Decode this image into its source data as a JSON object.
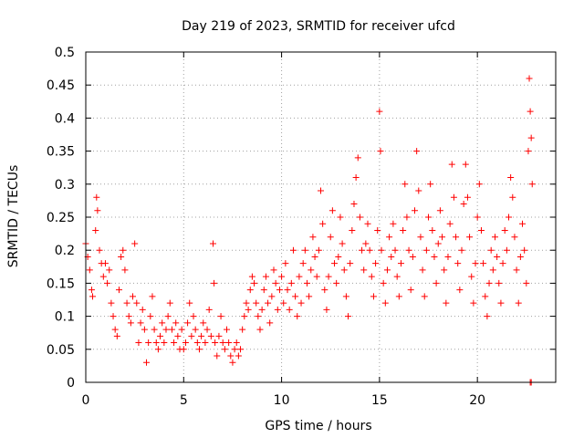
{
  "chart_data": {
    "type": "scatter",
    "title": "Day 219 of 2023, SRMTID for receiver ufcd",
    "xlabel": "GPS time / hours",
    "ylabel": "SRMTID / TECUs",
    "xlim": [
      0,
      24
    ],
    "ylim": [
      0,
      0.5
    ],
    "x_ticks": [
      "0",
      "5",
      "10",
      "15",
      "20"
    ],
    "y_ticks": [
      "0",
      "0.05",
      "0.1",
      "0.15",
      "0.2",
      "0.25",
      "0.3",
      "0.35",
      "0.4",
      "0.45",
      "0.5"
    ],
    "grid": true,
    "marker": "+",
    "color": "#ff0000",
    "series": [
      {
        "values_note": "dense scatter; representative points read from the plot",
        "points": [
          [
            0.0,
            0.21
          ],
          [
            0.1,
            0.19
          ],
          [
            0.2,
            0.17
          ],
          [
            0.3,
            0.14
          ],
          [
            0.35,
            0.13
          ],
          [
            0.5,
            0.23
          ],
          [
            0.55,
            0.28
          ],
          [
            0.6,
            0.26
          ],
          [
            0.7,
            0.2
          ],
          [
            0.8,
            0.18
          ],
          [
            0.9,
            0.16
          ],
          [
            1.0,
            0.18
          ],
          [
            1.1,
            0.15
          ],
          [
            1.2,
            0.17
          ],
          [
            1.3,
            0.12
          ],
          [
            1.4,
            0.1
          ],
          [
            1.5,
            0.08
          ],
          [
            1.6,
            0.07
          ],
          [
            1.7,
            0.14
          ],
          [
            1.8,
            0.19
          ],
          [
            1.9,
            0.2
          ],
          [
            2.0,
            0.17
          ],
          [
            2.1,
            0.12
          ],
          [
            2.2,
            0.1
          ],
          [
            2.3,
            0.09
          ],
          [
            2.4,
            0.13
          ],
          [
            2.5,
            0.21
          ],
          [
            2.6,
            0.12
          ],
          [
            2.7,
            0.06
          ],
          [
            2.8,
            0.09
          ],
          [
            2.9,
            0.11
          ],
          [
            3.0,
            0.08
          ],
          [
            3.1,
            0.03
          ],
          [
            3.2,
            0.06
          ],
          [
            3.3,
            0.1
          ],
          [
            3.4,
            0.13
          ],
          [
            3.5,
            0.08
          ],
          [
            3.6,
            0.06
          ],
          [
            3.7,
            0.05
          ],
          [
            3.8,
            0.07
          ],
          [
            3.9,
            0.09
          ],
          [
            4.0,
            0.06
          ],
          [
            4.1,
            0.08
          ],
          [
            4.2,
            0.1
          ],
          [
            4.3,
            0.12
          ],
          [
            4.4,
            0.08
          ],
          [
            4.5,
            0.06
          ],
          [
            4.6,
            0.09
          ],
          [
            4.7,
            0.07
          ],
          [
            4.8,
            0.05
          ],
          [
            4.9,
            0.08
          ],
          [
            5.0,
            0.05
          ],
          [
            5.1,
            0.06
          ],
          [
            5.2,
            0.09
          ],
          [
            5.3,
            0.12
          ],
          [
            5.4,
            0.07
          ],
          [
            5.5,
            0.1
          ],
          [
            5.6,
            0.08
          ],
          [
            5.7,
            0.06
          ],
          [
            5.8,
            0.05
          ],
          [
            5.9,
            0.07
          ],
          [
            6.0,
            0.09
          ],
          [
            6.1,
            0.06
          ],
          [
            6.2,
            0.08
          ],
          [
            6.3,
            0.11
          ],
          [
            6.4,
            0.07
          ],
          [
            6.5,
            0.21
          ],
          [
            6.55,
            0.15
          ],
          [
            6.6,
            0.06
          ],
          [
            6.7,
            0.04
          ],
          [
            6.8,
            0.07
          ],
          [
            6.9,
            0.1
          ],
          [
            7.0,
            0.06
          ],
          [
            7.1,
            0.05
          ],
          [
            7.2,
            0.08
          ],
          [
            7.3,
            0.06
          ],
          [
            7.4,
            0.04
          ],
          [
            7.5,
            0.03
          ],
          [
            7.6,
            0.05
          ],
          [
            7.7,
            0.06
          ],
          [
            7.8,
            0.04
          ],
          [
            7.9,
            0.05
          ],
          [
            8.0,
            0.08
          ],
          [
            8.1,
            0.1
          ],
          [
            8.2,
            0.12
          ],
          [
            8.3,
            0.11
          ],
          [
            8.4,
            0.14
          ],
          [
            8.5,
            0.16
          ],
          [
            8.6,
            0.15
          ],
          [
            8.7,
            0.12
          ],
          [
            8.8,
            0.1
          ],
          [
            8.9,
            0.08
          ],
          [
            9.0,
            0.11
          ],
          [
            9.1,
            0.14
          ],
          [
            9.2,
            0.16
          ],
          [
            9.3,
            0.12
          ],
          [
            9.4,
            0.09
          ],
          [
            9.5,
            0.13
          ],
          [
            9.6,
            0.17
          ],
          [
            9.7,
            0.15
          ],
          [
            9.8,
            0.11
          ],
          [
            9.9,
            0.14
          ],
          [
            10.0,
            0.16
          ],
          [
            10.1,
            0.12
          ],
          [
            10.2,
            0.18
          ],
          [
            10.3,
            0.14
          ],
          [
            10.4,
            0.11
          ],
          [
            10.5,
            0.15
          ],
          [
            10.6,
            0.2
          ],
          [
            10.7,
            0.13
          ],
          [
            10.8,
            0.1
          ],
          [
            10.9,
            0.16
          ],
          [
            11.0,
            0.12
          ],
          [
            11.1,
            0.18
          ],
          [
            11.2,
            0.2
          ],
          [
            11.3,
            0.15
          ],
          [
            11.4,
            0.13
          ],
          [
            11.5,
            0.17
          ],
          [
            11.6,
            0.22
          ],
          [
            11.7,
            0.19
          ],
          [
            11.8,
            0.16
          ],
          [
            11.9,
            0.2
          ],
          [
            12.0,
            0.29
          ],
          [
            12.1,
            0.24
          ],
          [
            12.2,
            0.14
          ],
          [
            12.3,
            0.11
          ],
          [
            12.4,
            0.16
          ],
          [
            12.5,
            0.22
          ],
          [
            12.6,
            0.26
          ],
          [
            12.7,
            0.18
          ],
          [
            12.8,
            0.15
          ],
          [
            12.9,
            0.19
          ],
          [
            13.0,
            0.25
          ],
          [
            13.1,
            0.21
          ],
          [
            13.2,
            0.17
          ],
          [
            13.3,
            0.13
          ],
          [
            13.4,
            0.1
          ],
          [
            13.5,
            0.18
          ],
          [
            13.6,
            0.23
          ],
          [
            13.7,
            0.27
          ],
          [
            13.8,
            0.31
          ],
          [
            13.9,
            0.34
          ],
          [
            14.0,
            0.25
          ],
          [
            14.1,
            0.2
          ],
          [
            14.2,
            0.17
          ],
          [
            14.3,
            0.21
          ],
          [
            14.4,
            0.24
          ],
          [
            14.5,
            0.2
          ],
          [
            14.6,
            0.16
          ],
          [
            14.7,
            0.13
          ],
          [
            14.8,
            0.18
          ],
          [
            14.9,
            0.23
          ],
          [
            15.0,
            0.41
          ],
          [
            15.05,
            0.35
          ],
          [
            15.1,
            0.2
          ],
          [
            15.2,
            0.15
          ],
          [
            15.3,
            0.12
          ],
          [
            15.4,
            0.17
          ],
          [
            15.5,
            0.22
          ],
          [
            15.6,
            0.19
          ],
          [
            15.7,
            0.24
          ],
          [
            15.8,
            0.2
          ],
          [
            15.9,
            0.16
          ],
          [
            16.0,
            0.13
          ],
          [
            16.1,
            0.18
          ],
          [
            16.2,
            0.23
          ],
          [
            16.3,
            0.3
          ],
          [
            16.4,
            0.25
          ],
          [
            16.5,
            0.2
          ],
          [
            16.6,
            0.14
          ],
          [
            16.7,
            0.19
          ],
          [
            16.8,
            0.26
          ],
          [
            16.9,
            0.35
          ],
          [
            17.0,
            0.29
          ],
          [
            17.1,
            0.22
          ],
          [
            17.2,
            0.17
          ],
          [
            17.3,
            0.13
          ],
          [
            17.4,
            0.2
          ],
          [
            17.5,
            0.25
          ],
          [
            17.6,
            0.3
          ],
          [
            17.7,
            0.23
          ],
          [
            17.8,
            0.19
          ],
          [
            17.9,
            0.15
          ],
          [
            18.0,
            0.21
          ],
          [
            18.1,
            0.26
          ],
          [
            18.2,
            0.22
          ],
          [
            18.3,
            0.17
          ],
          [
            18.4,
            0.12
          ],
          [
            18.5,
            0.19
          ],
          [
            18.6,
            0.24
          ],
          [
            18.7,
            0.33
          ],
          [
            18.8,
            0.28
          ],
          [
            18.9,
            0.22
          ],
          [
            19.0,
            0.18
          ],
          [
            19.1,
            0.14
          ],
          [
            19.2,
            0.2
          ],
          [
            19.3,
            0.27
          ],
          [
            19.4,
            0.33
          ],
          [
            19.5,
            0.28
          ],
          [
            19.6,
            0.22
          ],
          [
            19.7,
            0.16
          ],
          [
            19.8,
            0.12
          ],
          [
            19.9,
            0.18
          ],
          [
            20.0,
            0.25
          ],
          [
            20.1,
            0.3
          ],
          [
            20.2,
            0.23
          ],
          [
            20.3,
            0.18
          ],
          [
            20.4,
            0.13
          ],
          [
            20.5,
            0.1
          ],
          [
            20.6,
            0.15
          ],
          [
            20.7,
            0.2
          ],
          [
            20.8,
            0.17
          ],
          [
            20.9,
            0.22
          ],
          [
            21.0,
            0.19
          ],
          [
            21.1,
            0.15
          ],
          [
            21.2,
            0.12
          ],
          [
            21.3,
            0.18
          ],
          [
            21.4,
            0.23
          ],
          [
            21.5,
            0.2
          ],
          [
            21.6,
            0.25
          ],
          [
            21.7,
            0.31
          ],
          [
            21.8,
            0.28
          ],
          [
            21.9,
            0.22
          ],
          [
            22.0,
            0.17
          ],
          [
            22.1,
            0.12
          ],
          [
            22.2,
            0.19
          ],
          [
            22.3,
            0.24
          ],
          [
            22.4,
            0.2
          ],
          [
            22.5,
            0.15
          ],
          [
            22.6,
            0.35
          ],
          [
            22.65,
            0.46
          ],
          [
            22.7,
            0.41
          ],
          [
            22.75,
            0.37
          ],
          [
            22.8,
            0.3
          ],
          [
            22.7,
            0.0
          ],
          [
            22.75,
            0.0
          ]
        ]
      }
    ]
  }
}
